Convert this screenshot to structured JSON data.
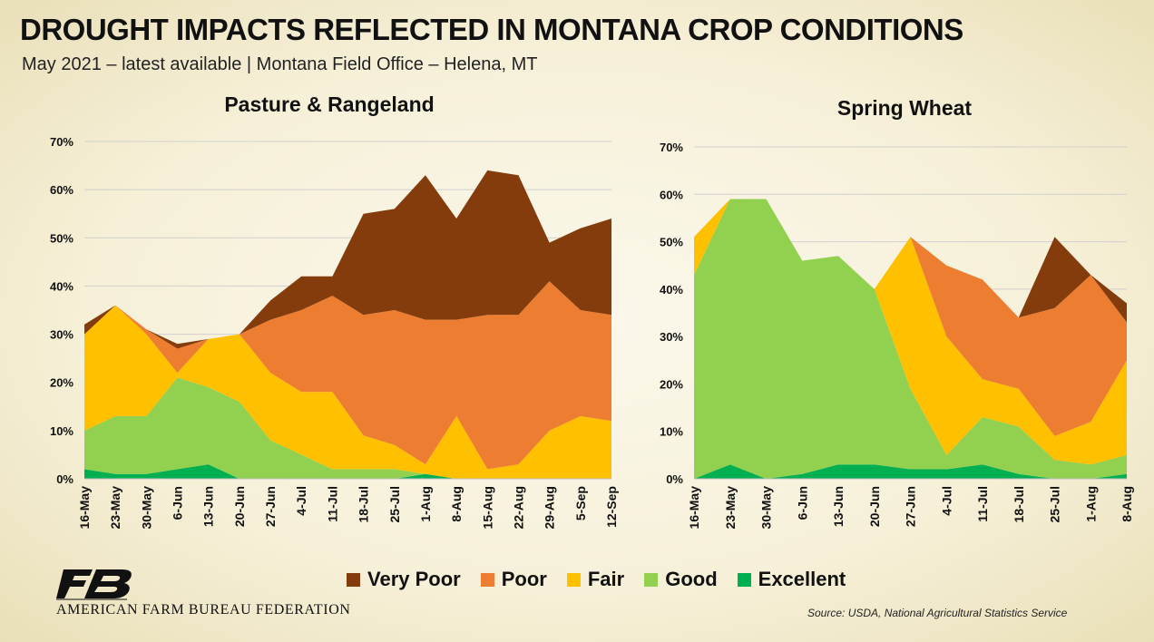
{
  "title": "DROUGHT IMPACTS REFLECTED IN MONTANA CROP CONDITIONS",
  "subtitle": "May 2021 – latest available | Montana Field Office – Helena, MT",
  "legend": [
    {
      "label": "Very Poor",
      "color": "#843c0c"
    },
    {
      "label": "Poor",
      "color": "#ed7d31"
    },
    {
      "label": "Fair",
      "color": "#ffc000"
    },
    {
      "label": "Good",
      "color": "#92d050"
    },
    {
      "label": "Excellent",
      "color": "#00b050"
    }
  ],
  "source": "Source: USDA, National Agricultural Statistics Service",
  "logo_text": "AMERICAN FARM BUREAU FEDERATION",
  "chart_data": [
    {
      "type": "area",
      "stacked": true,
      "title": "Pasture & Rangeland",
      "categories": [
        "16-May",
        "23-May",
        "30-May",
        "6-Jun",
        "13-Jun",
        "20-Jun",
        "27-Jun",
        "4-Jul",
        "11-Jul",
        "18-Jul",
        "25-Jul",
        "1-Aug",
        "8-Aug",
        "15-Aug",
        "22-Aug",
        "29-Aug",
        "5-Sep",
        "12-Sep"
      ],
      "ylim": [
        0,
        70
      ],
      "yticks": [
        "0%",
        "10%",
        "20%",
        "30%",
        "40%",
        "50%",
        "60%",
        "70%"
      ],
      "grid": true,
      "series": [
        {
          "name": "Excellent",
          "values": [
            2,
            1,
            1,
            2,
            3,
            0,
            0,
            0,
            0,
            0,
            0,
            1,
            0,
            0,
            0,
            0,
            0,
            0
          ]
        },
        {
          "name": "Good",
          "values": [
            8,
            12,
            12,
            19,
            16,
            16,
            8,
            5,
            2,
            2,
            2,
            0,
            0,
            0,
            0,
            0,
            0,
            0
          ]
        },
        {
          "name": "Fair",
          "values": [
            20,
            23,
            17,
            1,
            10,
            14,
            14,
            13,
            16,
            7,
            5,
            2,
            13,
            2,
            3,
            10,
            13,
            12
          ]
        },
        {
          "name": "Poor",
          "values": [
            0,
            0,
            1,
            5,
            0,
            0,
            11,
            17,
            20,
            25,
            28,
            30,
            20,
            32,
            31,
            31,
            22,
            22
          ]
        },
        {
          "name": "Very Poor",
          "values": [
            2,
            0,
            0,
            1,
            0,
            0,
            4,
            7,
            4,
            21,
            21,
            30,
            21,
            30,
            29,
            8,
            17,
            20
          ]
        }
      ]
    },
    {
      "type": "area",
      "stacked": true,
      "title": "Spring Wheat",
      "categories": [
        "16-May",
        "23-May",
        "30-May",
        "6-Jun",
        "13-Jun",
        "20-Jun",
        "27-Jun",
        "4-Jul",
        "11-Jul",
        "18-Jul",
        "25-Jul",
        "1-Aug",
        "8-Aug"
      ],
      "ylim": [
        0,
        70
      ],
      "yticks": [
        "0%",
        "10%",
        "20%",
        "30%",
        "40%",
        "50%",
        "60%",
        "70%"
      ],
      "grid": true,
      "series": [
        {
          "name": "Excellent",
          "values": [
            0,
            3,
            0,
            1,
            3,
            3,
            2,
            2,
            3,
            1,
            0,
            0,
            1
          ]
        },
        {
          "name": "Good",
          "values": [
            43,
            56,
            59,
            45,
            44,
            37,
            17,
            3,
            10,
            10,
            4,
            3,
            4
          ]
        },
        {
          "name": "Fair",
          "values": [
            8,
            0,
            0,
            0,
            0,
            0,
            32,
            25,
            8,
            8,
            5,
            9,
            20
          ]
        },
        {
          "name": "Poor",
          "values": [
            0,
            0,
            0,
            0,
            0,
            0,
            0,
            15,
            21,
            15,
            27,
            31,
            8
          ]
        },
        {
          "name": "Very Poor",
          "values": [
            0,
            0,
            0,
            0,
            0,
            0,
            0,
            0,
            0,
            0,
            15,
            0,
            4
          ]
        }
      ]
    }
  ]
}
